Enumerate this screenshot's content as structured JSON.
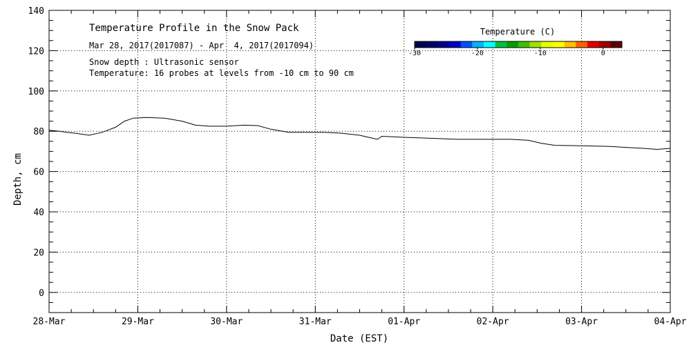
{
  "chart_data": {
    "type": "line",
    "title": "Temperature Profile in the Snow Pack",
    "subtitle": "Mar 28, 2017(2017087) - Apr  4, 2017(2017094)",
    "info_lines": [
      "Snow depth : Ultrasonic sensor",
      "Temperature: 16 probes at levels from -10 cm to 90 cm"
    ],
    "xlabel": "Date (EST)",
    "ylabel": "Depth, cm",
    "xlim": [
      0,
      7
    ],
    "ylim": [
      -10,
      140
    ],
    "x_ticks": [
      {
        "value": 0,
        "label": "28-Mar"
      },
      {
        "value": 1,
        "label": "29-Mar"
      },
      {
        "value": 2,
        "label": "30-Mar"
      },
      {
        "value": 3,
        "label": "31-Mar"
      },
      {
        "value": 4,
        "label": "01-Apr"
      },
      {
        "value": 5,
        "label": "02-Apr"
      },
      {
        "value": 6,
        "label": "03-Apr"
      },
      {
        "value": 7,
        "label": "04-Apr"
      }
    ],
    "y_ticks": [
      {
        "value": 0,
        "label": "0"
      },
      {
        "value": 20,
        "label": "20"
      },
      {
        "value": 40,
        "label": "40"
      },
      {
        "value": 60,
        "label": "60"
      },
      {
        "value": 80,
        "label": "80"
      },
      {
        "value": 100,
        "label": "100"
      },
      {
        "value": 120,
        "label": "120"
      },
      {
        "value": 140,
        "label": "140"
      }
    ],
    "grid": true,
    "series": [
      {
        "color": "#000000",
        "x": [
          0,
          0.12,
          0.2,
          0.3,
          0.45,
          0.6,
          0.75,
          0.85,
          0.95,
          1.1,
          1.3,
          1.5,
          1.65,
          1.8,
          2.0,
          2.2,
          2.35,
          2.5,
          2.7,
          2.9,
          3.1,
          3.3,
          3.5,
          3.6,
          3.7,
          3.75,
          4.0,
          4.3,
          4.6,
          4.9,
          5.2,
          5.4,
          5.55,
          5.7,
          6.0,
          6.3,
          6.5,
          6.7,
          6.85,
          7.0
        ],
        "y": [
          80.5,
          80,
          79.5,
          79,
          78,
          79.5,
          82,
          85,
          86.5,
          86.8,
          86.5,
          85,
          83,
          82.5,
          82.5,
          83,
          82.8,
          81,
          79.5,
          79.5,
          79.5,
          79,
          78,
          77,
          76,
          77.5,
          77,
          76.5,
          76,
          76,
          76,
          75.5,
          74,
          73,
          72.8,
          72.5,
          72,
          71.5,
          71,
          71.5
        ]
      }
    ],
    "colorbar": {
      "title": "Temperature (C)",
      "range": [
        -30,
        3
      ],
      "tick_labels": [
        {
          "value": -30,
          "label": "-30"
        },
        {
          "value": -20,
          "label": "-20"
        },
        {
          "value": -10,
          "label": "-10"
        },
        {
          "value": 0,
          "label": "0"
        }
      ],
      "colors": [
        "#00004a",
        "#00006a",
        "#00008e",
        "#0000c0",
        "#0050ff",
        "#00b4ff",
        "#00ffff",
        "#00c040",
        "#00a000",
        "#40c000",
        "#a0e000",
        "#e8ff00",
        "#ffff00",
        "#ffc000",
        "#ff6000",
        "#e00000",
        "#a00000",
        "#600000"
      ]
    }
  }
}
